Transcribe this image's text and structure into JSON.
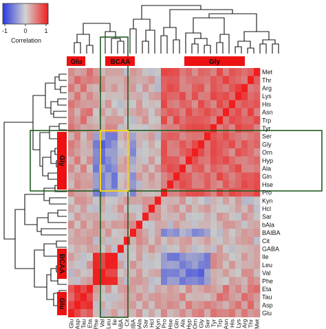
{
  "chart_data": {
    "type": "heatmap",
    "title": "",
    "xlabel": "",
    "ylabel": "",
    "color_scale": {
      "label": "Correlation",
      "ticks": [
        "-1",
        "0",
        "1"
      ],
      "range": [
        -1,
        1
      ],
      "low_color": "#2a38e0",
      "mid_color": "#c8c8c8",
      "high_color": "#f01e1e"
    },
    "column_labels": [
      "Glu",
      "Asp",
      "Tau",
      "Eta",
      "Phe",
      "Val",
      "Leu",
      "Ile",
      "GABA",
      "Cit",
      "BAIBA",
      "bAla",
      "Sar",
      "Hcl",
      "Kyn",
      "Pro",
      "Hse",
      "Gln",
      "Ala",
      "Hyp",
      "Orn",
      "Gly",
      "Ser",
      "Tyr",
      "Trp",
      "Asn",
      "His",
      "Lys",
      "Arg",
      "Thr",
      "Met"
    ],
    "row_labels": [
      "Met",
      "Thr",
      "Arg",
      "Lys",
      "His",
      "Asn",
      "Trp",
      "Tyr",
      "Ser",
      "Gly",
      "Orn",
      "Hyp",
      "Ala",
      "Gln",
      "Hse",
      "Pro",
      "Kyn",
      "Hcl",
      "Sar",
      "bAla",
      "BAIBA",
      "Cit",
      "GABA",
      "Ile",
      "Leu",
      "Val",
      "Phe",
      "Eta",
      "Tau",
      "Asp",
      "Glu"
    ],
    "column_groups": [
      {
        "label": "Glu",
        "color": "#ee1111"
      },
      {
        "label": "BCAA",
        "color": "#ee1111"
      },
      {
        "label": "Gly",
        "color": "#ee1111"
      }
    ],
    "row_groups": [
      {
        "label": "Gly",
        "color": "#ee1111"
      },
      {
        "label": "BCAA",
        "color": "#ee1111"
      },
      {
        "label": "Glu",
        "color": "#ee1111"
      }
    ],
    "highlight_colors": {
      "cluster_box": "#1f5a1f",
      "subblock_box": "#f2d21b"
    },
    "values_note": "matrix computed from symmetric correlation structure"
  }
}
